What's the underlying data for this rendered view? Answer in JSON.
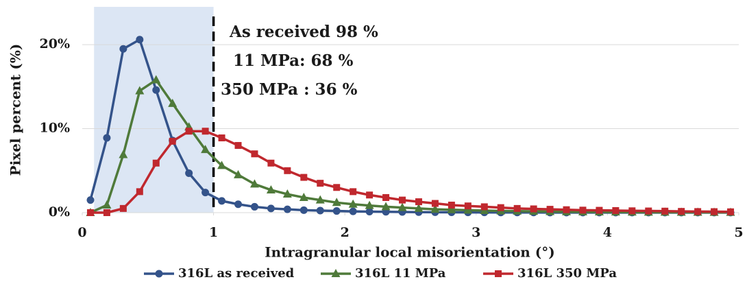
{
  "chart_data": {
    "type": "line",
    "x_label": "Intragranular local misorientation (°)",
    "y_label": "Pixel percent (%)",
    "xlim": [
      0,
      5
    ],
    "xticks": [
      0,
      1,
      2,
      3,
      4,
      5
    ],
    "ylim": [
      0,
      24.5
    ],
    "yticks": [
      {
        "value": 0,
        "label": "0%"
      },
      {
        "value": 10,
        "label": "10%"
      },
      {
        "value": 20,
        "label": "20%"
      }
    ],
    "grid": true,
    "legend": "bottom",
    "threshold_x": 1,
    "shaded_range": [
      0.09,
      1
    ],
    "annotations": [
      {
        "text": "As received 98 %",
        "color": "#34538a"
      },
      {
        "text": "11 MPa: 68 %",
        "color": "#4f7a3a"
      },
      {
        "text": "350 MPa : 36 %",
        "color": "#c0282e"
      }
    ],
    "x": [
      0.0625,
      0.1875,
      0.3125,
      0.4375,
      0.5625,
      0.6875,
      0.8125,
      0.9375,
      1.0625,
      1.1875,
      1.3125,
      1.4375,
      1.5625,
      1.6875,
      1.8125,
      1.9375,
      2.0625,
      2.1875,
      2.3125,
      2.4375,
      2.5625,
      2.6875,
      2.8125,
      2.9375,
      3.0625,
      3.1875,
      3.3125,
      3.4375,
      3.5625,
      3.6875,
      3.8125,
      3.9375,
      4.0625,
      4.1875,
      4.3125,
      4.4375,
      4.5625,
      4.6875,
      4.8125,
      4.9375
    ],
    "series": [
      {
        "name": "316L as received",
        "color": "#34538a",
        "marker": "circle",
        "values": [
          1.5,
          8.9,
          19.5,
          20.6,
          14.6,
          8.6,
          4.7,
          2.4,
          1.4,
          1.0,
          0.7,
          0.5,
          0.4,
          0.3,
          0.25,
          0.2,
          0.15,
          0.12,
          0.1,
          0.08,
          0.06,
          0.05,
          0.04,
          0.03,
          0.03,
          0.02,
          0.02,
          0.02,
          0.01,
          0.01,
          0.01,
          0.01,
          0.01,
          0.01,
          0.01,
          0.01,
          0.01,
          0.01,
          0.01,
          0.01
        ]
      },
      {
        "name": "316L 11 MPa",
        "color": "#4f7a3a",
        "marker": "triangle",
        "values": [
          0,
          0.9,
          6.9,
          14.5,
          15.8,
          13.0,
          10.2,
          7.5,
          5.6,
          4.5,
          3.4,
          2.7,
          2.2,
          1.8,
          1.5,
          1.2,
          1.0,
          0.85,
          0.7,
          0.6,
          0.5,
          0.4,
          0.35,
          0.3,
          0.25,
          0.2,
          0.18,
          0.15,
          0.12,
          0.1,
          0.09,
          0.08,
          0.07,
          0.06,
          0.05,
          0.05,
          0.04,
          0.04,
          0.03,
          0.03
        ]
      },
      {
        "name": "316L 350 MPa",
        "color": "#c0282e",
        "marker": "square",
        "values": [
          0,
          0,
          0.5,
          2.5,
          5.9,
          8.5,
          9.7,
          9.7,
          8.9,
          8.0,
          7.0,
          5.9,
          5.0,
          4.2,
          3.5,
          3.0,
          2.5,
          2.1,
          1.8,
          1.5,
          1.3,
          1.1,
          0.9,
          0.8,
          0.7,
          0.6,
          0.5,
          0.45,
          0.4,
          0.35,
          0.3,
          0.28,
          0.25,
          0.22,
          0.2,
          0.18,
          0.15,
          0.13,
          0.12,
          0.1
        ]
      }
    ]
  }
}
